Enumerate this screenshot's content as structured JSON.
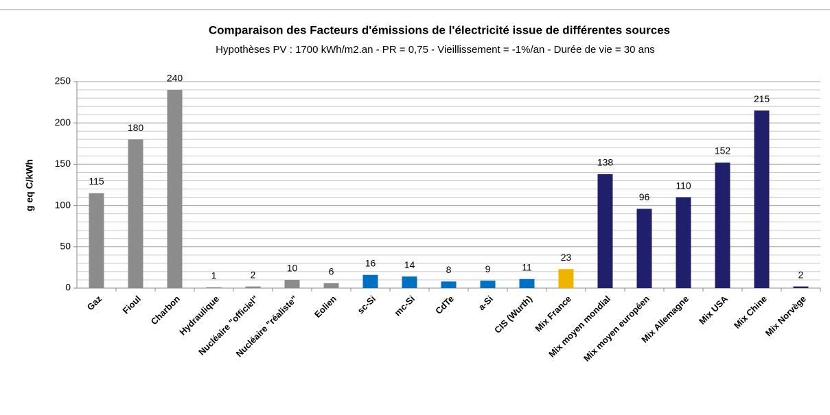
{
  "chart_data": {
    "type": "bar",
    "title": "Comparaison des Facteurs d'émissions de l'électricité issue de différentes sources",
    "subtitle": "Hypothèses PV : 1700  kWh/m2.an -  PR = 0,75  - Vieillissement = -1%/an - Durée de vie = 30 ans",
    "y_label": "g eq C/kWh",
    "categories": [
      "Gaz",
      "Fioul",
      "Charbon",
      "Hydraulique",
      "Nucléaire \"officiel\"",
      "Nucléaire \"réaliste\"",
      "Eolien",
      "sc-Si",
      "mc-Si",
      "CdTe",
      "a-Si",
      "CIS (Wurth)",
      "Mix France",
      "Mix moyen mondial",
      "Mix moyen européen",
      "Mix Allemagne",
      "Mix USA",
      "Mix Chine",
      "Mix Norvège"
    ],
    "values": [
      115,
      180,
      240,
      1,
      2,
      10,
      6,
      16,
      14,
      8,
      9,
      11,
      23,
      138,
      96,
      110,
      152,
      215,
      2
    ],
    "colors": [
      "#8c8c8c",
      "#8c8c8c",
      "#8c8c8c",
      "#8c8c8c",
      "#8c8c8c",
      "#8c8c8c",
      "#8c8c8c",
      "#0070c0",
      "#0070c0",
      "#0070c0",
      "#0070c0",
      "#0070c0",
      "#f0b400",
      "#1f1f6b",
      "#1f1f6b",
      "#1f1f6b",
      "#1f1f6b",
      "#1f1f6b",
      "#1f1f6b"
    ],
    "ylim": [
      0,
      250
    ],
    "yticks": [
      0,
      50,
      100,
      150,
      200,
      250
    ],
    "minor_yticks": [
      10,
      20,
      30,
      40,
      60,
      70,
      80,
      90,
      110,
      120,
      130,
      140,
      160,
      170,
      180,
      190,
      210,
      220,
      230,
      240
    ],
    "grid": true
  }
}
